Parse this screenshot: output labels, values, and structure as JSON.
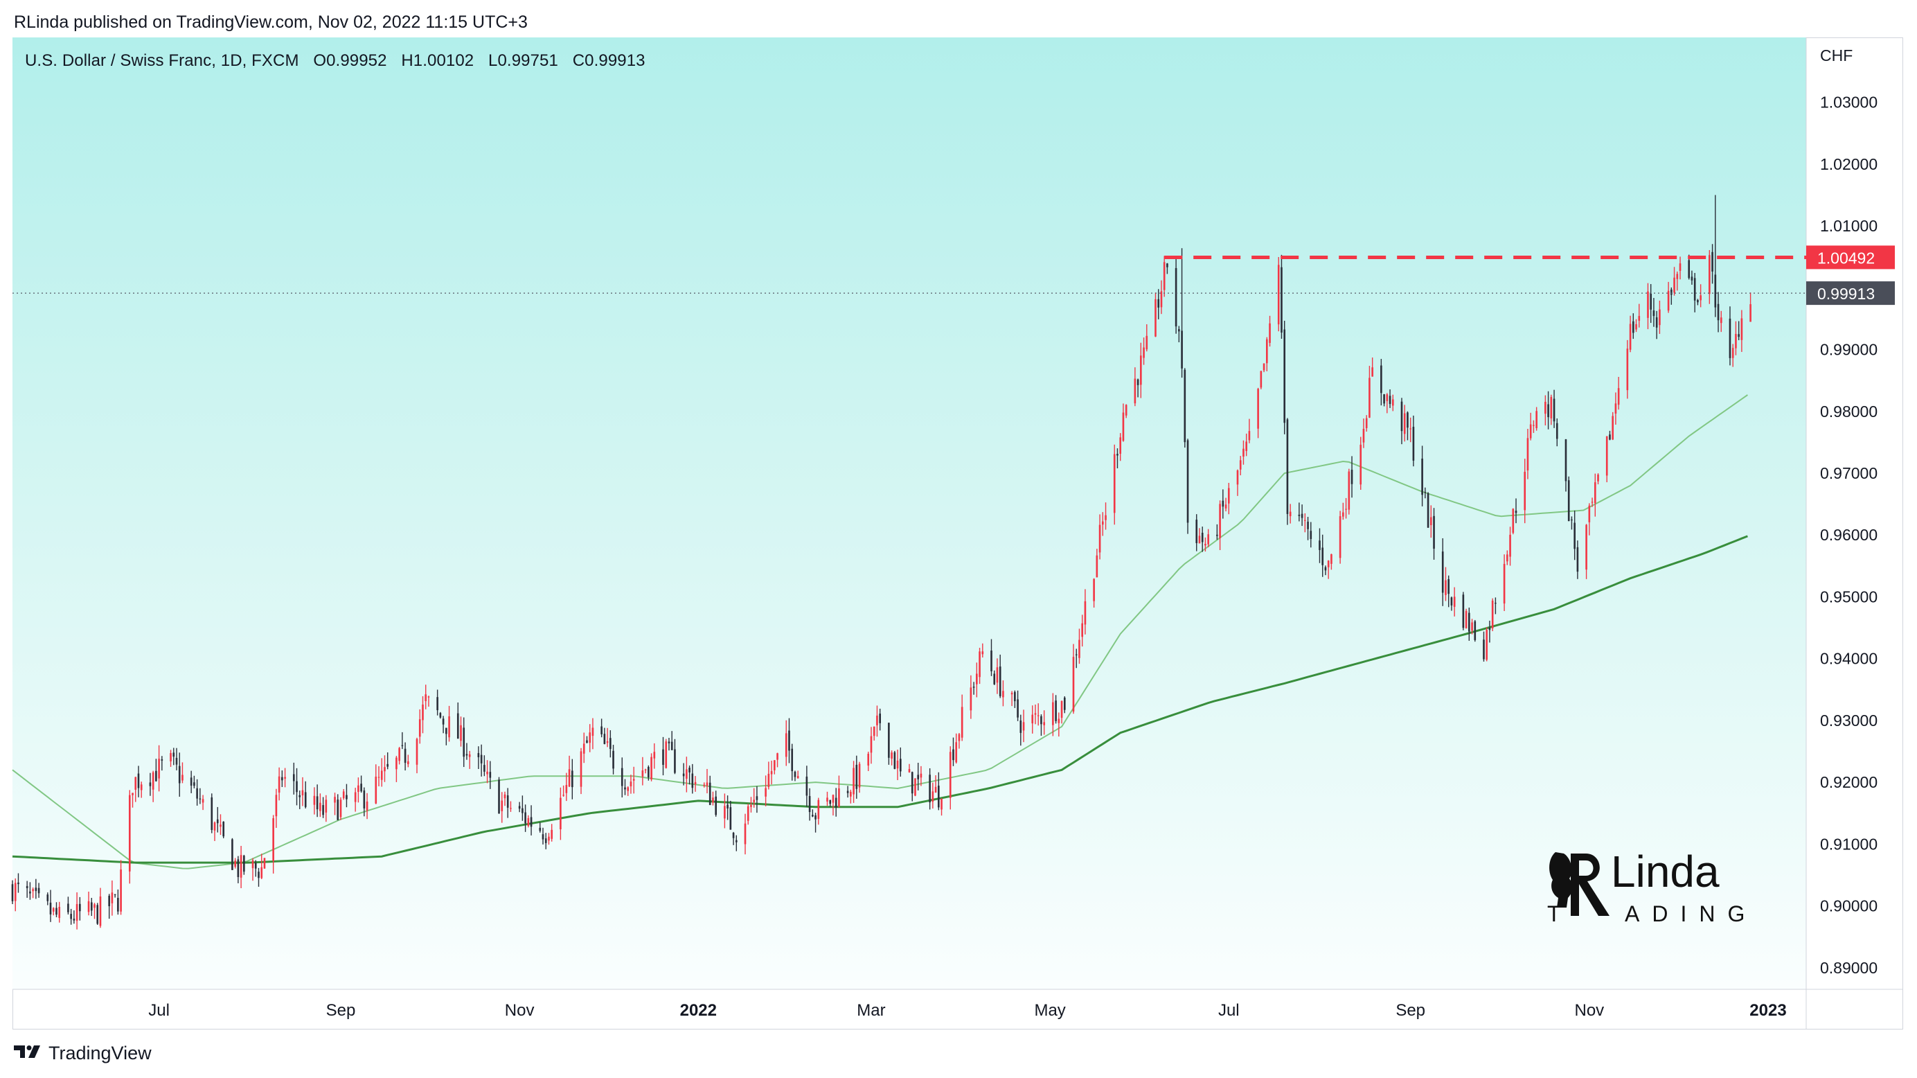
{
  "header": {
    "published_line": "RLinda published on TradingView.com, Nov 02, 2022 11:15 UTC+3"
  },
  "symbol": {
    "name": "U.S. Dollar / Swiss Franc, 1D, FXCM",
    "open": "O0.99952",
    "high": "H1.00102",
    "low": "L0.99751",
    "close": "C0.99913"
  },
  "footer": {
    "brand": "TradingView"
  },
  "watermark": {
    "text_top": "RLinda",
    "text_bottom": "TRADING"
  },
  "colors": {
    "up": "#f23645",
    "down": "#2a2e39",
    "ma_fast": "#81c784",
    "ma_slow": "#388e3c",
    "resistance": "#f23645",
    "last_price_label": "#4a4e59"
  },
  "chart_data": {
    "type": "candlestick",
    "interval": "1D",
    "currency_label": "CHF",
    "y_ticks": [
      "1.03000",
      "1.02000",
      "1.01000",
      "0.99000",
      "0.98000",
      "0.97000",
      "0.96000",
      "0.95000",
      "0.94000",
      "0.93000",
      "0.92000",
      "0.91000",
      "0.90000",
      "0.89000"
    ],
    "ylim": [
      0.8865,
      1.0405
    ],
    "x_ticks": [
      {
        "label": "Jul",
        "date": "2021-07-01",
        "bold": false
      },
      {
        "label": "Sep",
        "date": "2021-09-01",
        "bold": false
      },
      {
        "label": "Nov",
        "date": "2021-11-01",
        "bold": false
      },
      {
        "label": "2022",
        "date": "2022-01-01",
        "bold": true
      },
      {
        "label": "Mar",
        "date": "2022-03-01",
        "bold": false
      },
      {
        "label": "May",
        "date": "2022-05-01",
        "bold": false
      },
      {
        "label": "Jul",
        "date": "2022-07-01",
        "bold": false
      },
      {
        "label": "Sep",
        "date": "2022-09-01",
        "bold": false
      },
      {
        "label": "Nov",
        "date": "2022-11-01",
        "bold": false
      },
      {
        "label": "2023",
        "date": "2023-01-01",
        "bold": true
      }
    ],
    "x_range": [
      "2021-05-12",
      "2023-01-14"
    ],
    "price_path": [
      {
        "date": "2021-05-12",
        "close": 0.903
      },
      {
        "date": "2021-05-28",
        "close": 0.898
      },
      {
        "date": "2021-06-10",
        "close": 0.899
      },
      {
        "date": "2021-06-17",
        "close": 0.901
      },
      {
        "date": "2021-06-22",
        "close": 0.92
      },
      {
        "date": "2021-07-05",
        "close": 0.923
      },
      {
        "date": "2021-07-15",
        "close": 0.917
      },
      {
        "date": "2021-07-28",
        "close": 0.906
      },
      {
        "date": "2021-08-05",
        "close": 0.906
      },
      {
        "date": "2021-08-12",
        "close": 0.921
      },
      {
        "date": "2021-08-25",
        "close": 0.915
      },
      {
        "date": "2021-09-10",
        "close": 0.918
      },
      {
        "date": "2021-09-24",
        "close": 0.925
      },
      {
        "date": "2021-09-30",
        "close": 0.933
      },
      {
        "date": "2021-10-12",
        "close": 0.927
      },
      {
        "date": "2021-10-25",
        "close": 0.917
      },
      {
        "date": "2021-11-10",
        "close": 0.912
      },
      {
        "date": "2021-11-26",
        "close": 0.928
      },
      {
        "date": "2021-12-01",
        "close": 0.925
      },
      {
        "date": "2021-12-08",
        "close": 0.92
      },
      {
        "date": "2021-12-20",
        "close": 0.925
      },
      {
        "date": "2022-01-05",
        "close": 0.918
      },
      {
        "date": "2022-01-14",
        "close": 0.912
      },
      {
        "date": "2022-01-31",
        "close": 0.926
      },
      {
        "date": "2022-02-10",
        "close": 0.915
      },
      {
        "date": "2022-02-25",
        "close": 0.921
      },
      {
        "date": "2022-03-04",
        "close": 0.93
      },
      {
        "date": "2022-03-11",
        "close": 0.921
      },
      {
        "date": "2022-03-24",
        "close": 0.918
      },
      {
        "date": "2022-04-08",
        "close": 0.941
      },
      {
        "date": "2022-04-22",
        "close": 0.929
      },
      {
        "date": "2022-05-06",
        "close": 0.933
      },
      {
        "date": "2022-05-20",
        "close": 0.964
      },
      {
        "date": "2022-05-26",
        "close": 0.98
      },
      {
        "date": "2022-06-03",
        "close": 0.99
      },
      {
        "date": "2022-06-10",
        "close": 1.004
      },
      {
        "date": "2022-06-15",
        "close": 0.988
      },
      {
        "date": "2022-06-17",
        "close": 0.962
      },
      {
        "date": "2022-06-24",
        "close": 0.958
      },
      {
        "date": "2022-07-08",
        "close": 0.975
      },
      {
        "date": "2022-07-14",
        "close": 0.99
      },
      {
        "date": "2022-07-18",
        "close": 1.0045
      },
      {
        "date": "2022-07-21",
        "close": 0.965
      },
      {
        "date": "2022-08-04",
        "close": 0.955
      },
      {
        "date": "2022-08-15",
        "close": 0.976
      },
      {
        "date": "2022-08-19",
        "close": 0.986
      },
      {
        "date": "2022-09-01",
        "close": 0.976
      },
      {
        "date": "2022-09-12",
        "close": 0.952
      },
      {
        "date": "2022-09-26",
        "close": 0.942
      },
      {
        "date": "2022-10-07",
        "close": 0.965
      },
      {
        "date": "2022-10-14",
        "close": 0.981
      },
      {
        "date": "2022-10-20",
        "close": 0.98
      },
      {
        "date": "2022-10-26",
        "close": 0.961
      },
      {
        "date": "2022-10-28",
        "close": 0.955
      },
      {
        "date": "2022-11-07",
        "close": 0.974
      },
      {
        "date": "2022-11-14",
        "close": 0.992
      },
      {
        "date": "2022-11-21",
        "close": 0.998
      },
      {
        "date": "2022-11-24",
        "close": 0.995
      },
      {
        "date": "2022-12-02",
        "close": 1.003
      },
      {
        "date": "2022-12-05",
        "close": 1.0
      },
      {
        "date": "2022-12-09",
        "close": 0.999
      },
      {
        "date": "2022-12-12",
        "close": 1.0035
      },
      {
        "date": "2022-12-15",
        "close": 0.996
      },
      {
        "date": "2022-12-19",
        "close": 0.987
      },
      {
        "date": "2022-12-22",
        "close": 0.994
      },
      {
        "date": "2022-12-26",
        "close": 0.9991
      }
    ],
    "notable_highs": [
      {
        "date": "2022-06-15",
        "high": 1.0064
      },
      {
        "date": "2022-12-14",
        "high": 1.015
      }
    ],
    "ma_fast": {
      "points": [
        {
          "date": "2021-05-12",
          "value": 0.922
        },
        {
          "date": "2021-06-22",
          "value": 0.907
        },
        {
          "date": "2021-07-10",
          "value": 0.906
        },
        {
          "date": "2021-07-30",
          "value": 0.907
        },
        {
          "date": "2021-09-01",
          "value": 0.914
        },
        {
          "date": "2021-10-04",
          "value": 0.919
        },
        {
          "date": "2021-11-05",
          "value": 0.921
        },
        {
          "date": "2021-12-10",
          "value": 0.921
        },
        {
          "date": "2022-01-10",
          "value": 0.919
        },
        {
          "date": "2022-02-10",
          "value": 0.92
        },
        {
          "date": "2022-03-10",
          "value": 0.919
        },
        {
          "date": "2022-04-10",
          "value": 0.922
        },
        {
          "date": "2022-05-05",
          "value": 0.929
        },
        {
          "date": "2022-05-25",
          "value": 0.944
        },
        {
          "date": "2022-06-15",
          "value": 0.955
        },
        {
          "date": "2022-07-05",
          "value": 0.962
        },
        {
          "date": "2022-07-20",
          "value": 0.97
        },
        {
          "date": "2022-08-10",
          "value": 0.972
        },
        {
          "date": "2022-09-05",
          "value": 0.967
        },
        {
          "date": "2022-10-01",
          "value": 0.963
        },
        {
          "date": "2022-10-30",
          "value": 0.964
        },
        {
          "date": "2022-11-15",
          "value": 0.968
        },
        {
          "date": "2022-12-05",
          "value": 0.976
        },
        {
          "date": "2022-12-26",
          "value": 0.983
        }
      ]
    },
    "ma_slow": {
      "points": [
        {
          "date": "2021-05-12",
          "value": 0.908
        },
        {
          "date": "2021-06-22",
          "value": 0.907
        },
        {
          "date": "2021-08-01",
          "value": 0.907
        },
        {
          "date": "2021-09-15",
          "value": 0.908
        },
        {
          "date": "2021-10-20",
          "value": 0.912
        },
        {
          "date": "2021-11-25",
          "value": 0.915
        },
        {
          "date": "2022-01-01",
          "value": 0.917
        },
        {
          "date": "2022-02-10",
          "value": 0.916
        },
        {
          "date": "2022-03-10",
          "value": 0.916
        },
        {
          "date": "2022-04-10",
          "value": 0.919
        },
        {
          "date": "2022-05-05",
          "value": 0.922
        },
        {
          "date": "2022-05-25",
          "value": 0.928
        },
        {
          "date": "2022-06-25",
          "value": 0.933
        },
        {
          "date": "2022-07-20",
          "value": 0.936
        },
        {
          "date": "2022-08-20",
          "value": 0.94
        },
        {
          "date": "2022-09-20",
          "value": 0.944
        },
        {
          "date": "2022-10-20",
          "value": 0.948
        },
        {
          "date": "2022-11-15",
          "value": 0.953
        },
        {
          "date": "2022-12-10",
          "value": 0.957
        },
        {
          "date": "2022-12-26",
          "value": 0.96
        }
      ]
    },
    "resistance_line": {
      "value": 1.00492,
      "label": "1.00492",
      "from": "2022-06-09",
      "to": "2023-01-14",
      "style": "dashed"
    },
    "last_price_line": {
      "value": 0.99913,
      "label": "0.99913",
      "style": "dotted"
    }
  }
}
